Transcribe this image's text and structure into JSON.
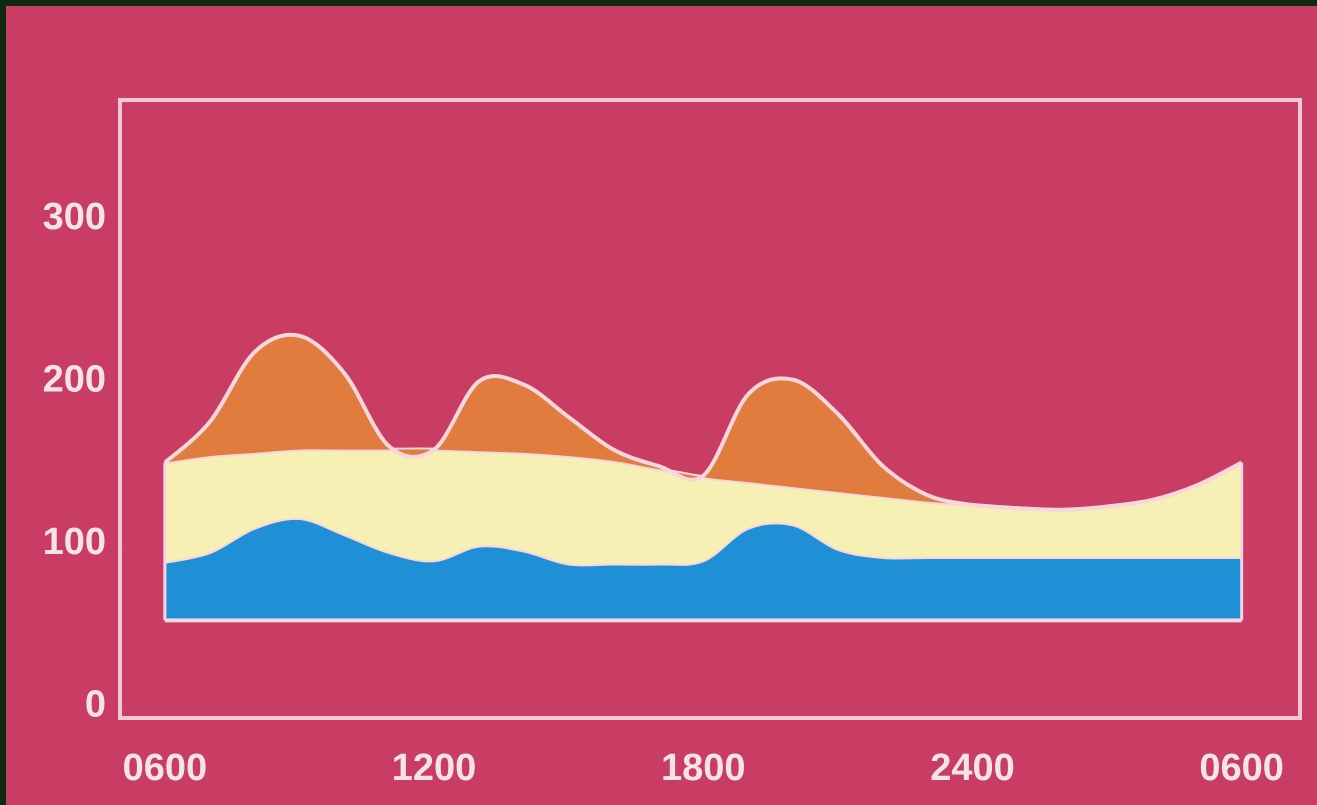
{
  "chart_data": {
    "type": "stacked-area",
    "x": [
      6,
      7,
      8,
      9,
      10,
      11,
      12,
      13,
      14,
      15,
      16,
      17,
      18,
      19,
      20,
      21,
      22,
      23,
      24,
      25,
      26,
      27,
      28,
      29,
      30
    ],
    "baseline": 53,
    "series": [
      {
        "color": "#1f8fd6",
        "values": [
          36,
          42,
          57,
          63,
          53,
          42,
          37,
          46,
          43,
          35,
          35,
          35,
          37,
          57,
          59,
          44,
          39,
          39,
          39,
          39,
          39,
          39,
          39,
          39,
          39
        ]
      },
      {
        "color": "#f6f0b4",
        "values": [
          61,
          59,
          46,
          42,
          52,
          63,
          68,
          58,
          60,
          66,
          63,
          58,
          51,
          28,
          23,
          35,
          37,
          34,
          32,
          30,
          29,
          31,
          35,
          44,
          58
        ]
      },
      {
        "color": "#e07c3e",
        "values": [
          0,
          21,
          62,
          70,
          47,
          2,
          0,
          43,
          42,
          24,
          7,
          2,
          1,
          54,
          66,
          48,
          19,
          4,
          0,
          0,
          0,
          0,
          0,
          0,
          0
        ]
      }
    ],
    "xlim": [
      5,
      31.3
    ],
    "xticks": [
      {
        "value": 6,
        "label": "0600"
      },
      {
        "value": 12,
        "label": "1200"
      },
      {
        "value": 18,
        "label": "1800"
      },
      {
        "value": 24,
        "label": "2400"
      },
      {
        "value": 30,
        "label": "0600"
      }
    ],
    "ylim": [
      -7,
      373
    ],
    "yticks": [
      0,
      100,
      200,
      300
    ]
  }
}
